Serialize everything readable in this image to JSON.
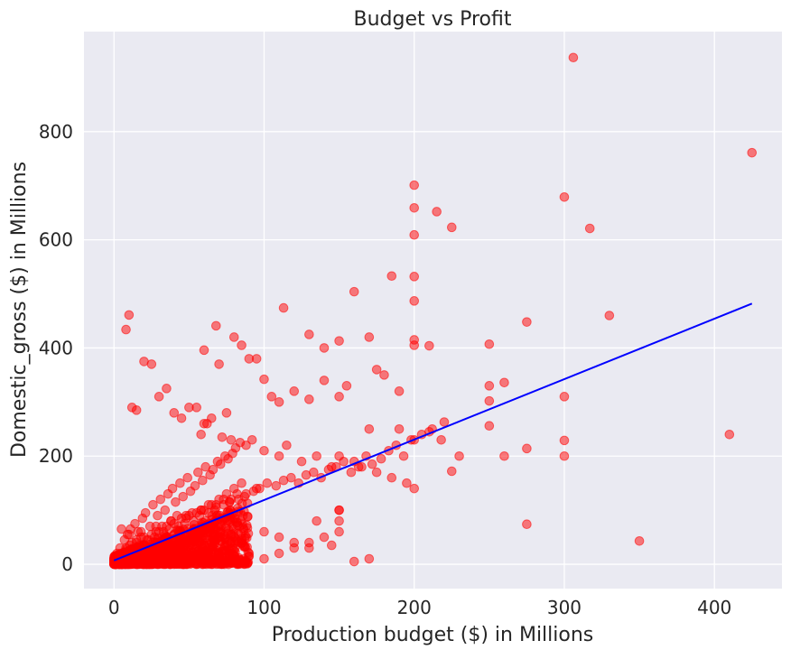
{
  "chart_data": {
    "type": "scatter",
    "title": "Budget vs Profit",
    "xlabel": "Production budget ($) in Millions",
    "ylabel": "Domestic_gross ($) in Millions",
    "xlim": [
      -20,
      445
    ],
    "ylim": [
      -45,
      985
    ],
    "x_ticks": [
      0,
      100,
      200,
      300,
      400
    ],
    "y_ticks": [
      0,
      200,
      400,
      600,
      800
    ],
    "grid": true,
    "colors": {
      "points": "#ff0000",
      "trend_line": "#0000ff",
      "background": "#eaeaf2"
    },
    "series": [
      {
        "type": "scatter",
        "x": [
          306,
          425,
          200,
          200,
          300,
          215,
          225,
          317,
          200,
          200,
          185,
          160,
          330,
          113,
          10,
          8,
          275,
          68,
          200,
          200,
          200,
          250,
          130,
          60,
          80,
          85,
          90,
          150,
          140,
          170,
          180,
          20,
          25,
          210,
          250,
          175,
          155,
          100,
          95,
          105,
          150,
          130,
          70,
          300,
          250,
          260,
          250,
          275,
          275,
          300,
          300,
          410,
          350,
          190,
          200,
          220,
          230,
          225,
          210,
          260,
          190,
          170,
          140,
          120,
          110,
          35,
          30,
          12,
          15,
          40,
          50,
          45,
          60,
          75,
          65,
          55,
          58,
          62,
          72,
          78,
          88,
          92,
          100,
          110,
          115,
          125,
          135,
          145,
          150,
          160,
          165,
          175,
          185,
          195,
          200,
          150,
          150,
          150,
          140,
          130,
          120,
          110,
          100,
          90,
          80,
          70,
          60,
          50,
          40,
          30,
          20,
          10,
          5,
          2,
          1,
          3,
          6,
          8,
          12,
          18,
          22,
          28,
          32,
          38,
          42,
          48,
          52,
          58,
          63,
          68,
          73,
          77,
          82,
          87,
          93,
          97,
          102,
          108,
          113,
          118,
          123,
          128,
          133,
          138,
          143,
          148,
          153,
          158,
          163,
          168,
          172,
          178,
          183,
          188,
          193,
          198,
          205,
          212,
          218,
          2,
          4,
          7,
          9,
          11,
          14,
          16,
          19,
          21,
          24,
          26,
          29,
          31,
          34,
          36,
          39,
          41,
          44,
          46,
          49,
          51,
          54,
          56,
          59,
          61,
          64,
          66,
          69,
          71,
          74,
          76,
          79,
          81,
          84,
          1,
          3,
          5,
          7,
          9,
          13,
          17,
          23,
          27,
          33,
          37,
          43,
          47,
          53,
          57,
          63,
          67,
          73,
          77,
          83,
          0.5,
          1.5,
          2.5,
          4.5,
          6.5,
          8.5,
          10.5,
          15,
          20,
          25,
          30,
          35,
          40,
          45,
          50,
          55,
          60,
          65,
          70,
          75,
          80,
          35,
          30,
          25,
          20,
          15,
          10,
          5,
          45,
          55,
          65,
          40,
          50,
          60,
          70,
          18,
          28,
          38,
          48,
          58,
          68,
          78,
          88,
          95,
          85,
          150,
          100,
          120,
          130,
          90,
          80,
          170,
          160,
          110,
          145,
          135
        ],
        "y": [
          937,
          761,
          701,
          659,
          679,
          652,
          623,
          621,
          609,
          532,
          533,
          504,
          460,
          474,
          461,
          434,
          448,
          441,
          487,
          415,
          405,
          407,
          425,
          396,
          420,
          405,
          380,
          413,
          400,
          420,
          350,
          375,
          370,
          404,
          330,
          360,
          330,
          342,
          380,
          310,
          310,
          305,
          370,
          310,
          302,
          336,
          256,
          214,
          74,
          229,
          200,
          240,
          43,
          320,
          230,
          263,
          200,
          172,
          245,
          200,
          250,
          250,
          340,
          320,
          300,
          325,
          310,
          290,
          285,
          280,
          290,
          270,
          260,
          280,
          270,
          290,
          240,
          260,
          235,
          230,
          220,
          230,
          210,
          200,
          220,
          190,
          200,
          180,
          200,
          190,
          180,
          170,
          160,
          150,
          140,
          100,
          80,
          60,
          50,
          40,
          30,
          20,
          10,
          15,
          25,
          20,
          15,
          10,
          8,
          5,
          3,
          2,
          1,
          5,
          10,
          0,
          20,
          30,
          40,
          50,
          45,
          60,
          70,
          80,
          90,
          85,
          95,
          100,
          110,
          105,
          120,
          115,
          130,
          125,
          135,
          140,
          150,
          145,
          155,
          160,
          150,
          165,
          170,
          160,
          175,
          180,
          190,
          170,
          180,
          200,
          185,
          195,
          210,
          220,
          200,
          230,
          240,
          250,
          230,
          20,
          30,
          45,
          55,
          65,
          75,
          60,
          85,
          95,
          70,
          110,
          90,
          120,
          100,
          130,
          140,
          115,
          150,
          125,
          160,
          135,
          145,
          170,
          155,
          180,
          165,
          175,
          190,
          185,
          200,
          195,
          205,
          215,
          225,
          2,
          5,
          8,
          12,
          18,
          25,
          35,
          45,
          50,
          60,
          65,
          70,
          75,
          80,
          90,
          95,
          100,
          110,
          115,
          120,
          3,
          6,
          9,
          15,
          22,
          28,
          35,
          40,
          50,
          55,
          60,
          70,
          75,
          85,
          90,
          95,
          100,
          110,
          120,
          130,
          140,
          5,
          15,
          25,
          35,
          45,
          55,
          65,
          20,
          30,
          40,
          10,
          25,
          35,
          50,
          60,
          70,
          80,
          90,
          100,
          110,
          120,
          130,
          140,
          150,
          100,
          60,
          40,
          30,
          20,
          15,
          10,
          5,
          50,
          35,
          80
        ],
        "dense_cluster": {
          "x_range": [
            0,
            90
          ],
          "y_range": [
            0,
            120
          ],
          "count": 1200
        }
      },
      {
        "type": "line",
        "x": [
          0,
          425
        ],
        "y": [
          7,
          482
        ]
      }
    ]
  }
}
